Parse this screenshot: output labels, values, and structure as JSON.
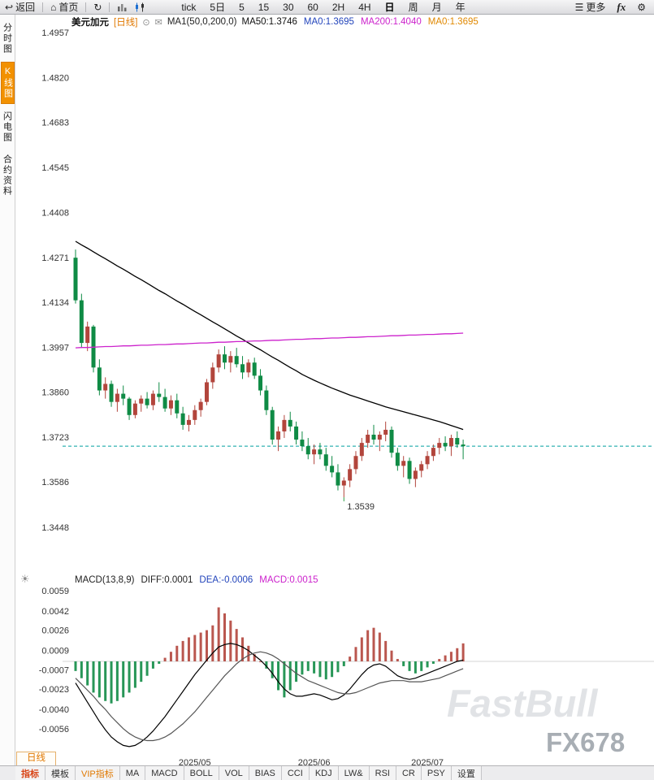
{
  "topbar": {
    "back_label": "返回",
    "home_label": "首页",
    "periods": [
      "tick",
      "5日",
      "5",
      "15",
      "30",
      "60",
      "2H",
      "4H",
      "日",
      "周",
      "月",
      "年"
    ],
    "active_period": "日",
    "more_label": "更多",
    "fx_label": "fx"
  },
  "sidebar": {
    "items": [
      {
        "key": "time-chart",
        "label": "分时图",
        "active": false
      },
      {
        "key": "kline-chart",
        "label": "K线图",
        "active": true
      },
      {
        "key": "lightning-chart",
        "label": "闪电图",
        "active": false
      },
      {
        "key": "contract-info",
        "label": "合约资料",
        "active": false
      }
    ]
  },
  "price_header": {
    "symbol": "美元加元",
    "period_tag": "[日线]",
    "ma_settings": "MA1(50,0,200,0)",
    "ma_values": [
      {
        "label": "MA50:1.3746",
        "color": "#111111"
      },
      {
        "label": "MA0:1.3695",
        "color": "#2244bb"
      },
      {
        "label": "MA200:1.4040",
        "color": "#cc22cc"
      },
      {
        "label": "MA0:1.3695",
        "color": "#e08800"
      }
    ]
  },
  "macd_header": {
    "title": "MACD(13,8,9)",
    "values": [
      {
        "label": "DIFF:0.0001",
        "color": "#222222"
      },
      {
        "label": "DEA:-0.0006",
        "color": "#2244bb"
      },
      {
        "label": "MACD:0.0015",
        "color": "#cc22cc"
      }
    ]
  },
  "bottom_tab": "日线",
  "bottombar": {
    "items": [
      {
        "key": "indicator",
        "label": "指标",
        "style": "hot"
      },
      {
        "key": "template",
        "label": "模板"
      },
      {
        "key": "vip",
        "label": "VIP指标",
        "style": "vip"
      },
      {
        "key": "ma",
        "label": "MA"
      },
      {
        "key": "macd",
        "label": "MACD"
      },
      {
        "key": "boll",
        "label": "BOLL"
      },
      {
        "key": "vol",
        "label": "VOL"
      },
      {
        "key": "bias",
        "label": "BIAS"
      },
      {
        "key": "cci",
        "label": "CCI"
      },
      {
        "key": "kdj",
        "label": "KDJ"
      },
      {
        "key": "lwr",
        "label": "LW&"
      },
      {
        "key": "rsi",
        "label": "RSI"
      },
      {
        "key": "cr",
        "label": "CR"
      },
      {
        "key": "psy",
        "label": "PSY"
      },
      {
        "key": "settings",
        "label": "设置"
      }
    ]
  },
  "watermarks": {
    "brand": "FastBull",
    "site": "FX678"
  },
  "colors": {
    "up": "#b2453c",
    "down": "#0f8b45",
    "ma50": "#000000",
    "ma200": "#cc22cc",
    "diff": "#000000",
    "dea": "#555555",
    "price_line": "#00a0a0",
    "low_label": "#2fa046"
  },
  "chart_data": [
    {
      "type": "candlestick",
      "title": "美元加元 日线",
      "ylim": [
        1.3321,
        1.4967
      ],
      "yticks": [
        1.4957,
        1.482,
        1.4683,
        1.4545,
        1.4408,
        1.4271,
        1.4134,
        1.3997,
        1.386,
        1.3723,
        1.3586,
        1.3448
      ],
      "current_price_line": 1.3695,
      "low_label": {
        "text": "1.3539",
        "index": 45
      },
      "xticks": [
        {
          "index": 20,
          "label": "2025/05"
        },
        {
          "index": 40,
          "label": "2025/06"
        },
        {
          "index": 59,
          "label": "2025/07"
        }
      ],
      "candles": [
        [
          1.427,
          1.4295,
          1.413,
          1.414
        ],
        [
          1.414,
          1.416,
          1.3995,
          1.401
        ],
        [
          1.401,
          1.4075,
          1.3985,
          1.406
        ],
        [
          1.406,
          1.4065,
          1.392,
          1.3935
        ],
        [
          1.3935,
          1.396,
          1.385,
          1.3865
        ],
        [
          1.3865,
          1.3905,
          1.384,
          1.3885
        ],
        [
          1.3885,
          1.3895,
          1.3815,
          1.383
        ],
        [
          1.383,
          1.387,
          1.38,
          1.3855
        ],
        [
          1.3855,
          1.388,
          1.382,
          1.384
        ],
        [
          1.384,
          1.3845,
          1.3775,
          1.379
        ],
        [
          1.379,
          1.3835,
          1.378,
          1.3825
        ],
        [
          1.3825,
          1.385,
          1.38,
          1.384
        ],
        [
          1.384,
          1.386,
          1.381,
          1.382
        ],
        [
          1.382,
          1.3865,
          1.3805,
          1.3855
        ],
        [
          1.3855,
          1.389,
          1.383,
          1.3845
        ],
        [
          1.3845,
          1.387,
          1.38,
          1.381
        ],
        [
          1.381,
          1.385,
          1.379,
          1.3835
        ],
        [
          1.3835,
          1.3855,
          1.378,
          1.3795
        ],
        [
          1.3795,
          1.3815,
          1.3745,
          1.376
        ],
        [
          1.376,
          1.379,
          1.374,
          1.3775
        ],
        [
          1.3775,
          1.382,
          1.376,
          1.3805
        ],
        [
          1.3805,
          1.384,
          1.3785,
          1.383
        ],
        [
          1.383,
          1.39,
          1.382,
          1.389
        ],
        [
          1.389,
          1.395,
          1.387,
          1.3935
        ],
        [
          1.3935,
          1.399,
          1.392,
          1.3975
        ],
        [
          1.3975,
          1.4,
          1.393,
          1.395
        ],
        [
          1.395,
          1.3985,
          1.392,
          1.397
        ],
        [
          1.397,
          1.3995,
          1.3935,
          1.3945
        ],
        [
          1.3945,
          1.397,
          1.39,
          1.392
        ],
        [
          1.392,
          1.396,
          1.3905,
          1.395
        ],
        [
          1.395,
          1.3965,
          1.39,
          1.391
        ],
        [
          1.391,
          1.393,
          1.385,
          1.3865
        ],
        [
          1.3865,
          1.388,
          1.379,
          1.3805
        ],
        [
          1.3805,
          1.3815,
          1.37,
          1.3715
        ],
        [
          1.3715,
          1.3755,
          1.368,
          1.374
        ],
        [
          1.374,
          1.379,
          1.372,
          1.3775
        ],
        [
          1.3775,
          1.38,
          1.374,
          1.3755
        ],
        [
          1.3755,
          1.377,
          1.37,
          1.3715
        ],
        [
          1.3715,
          1.374,
          1.368,
          1.3695
        ],
        [
          1.3695,
          1.372,
          1.3655,
          1.367
        ],
        [
          1.367,
          1.37,
          1.364,
          1.3685
        ],
        [
          1.3685,
          1.3705,
          1.3655,
          1.367
        ],
        [
          1.367,
          1.369,
          1.362,
          1.3635
        ],
        [
          1.3635,
          1.3665,
          1.36,
          1.3615
        ],
        [
          1.3615,
          1.364,
          1.356,
          1.3575
        ],
        [
          1.3575,
          1.36,
          1.3539,
          1.359
        ],
        [
          1.359,
          1.364,
          1.357,
          1.3625
        ],
        [
          1.3625,
          1.368,
          1.361,
          1.3665
        ],
        [
          1.3665,
          1.372,
          1.365,
          1.3705
        ],
        [
          1.3705,
          1.3745,
          1.369,
          1.373
        ],
        [
          1.373,
          1.376,
          1.37,
          1.3715
        ],
        [
          1.3715,
          1.374,
          1.368,
          1.373
        ],
        [
          1.373,
          1.377,
          1.371,
          1.3745
        ],
        [
          1.3745,
          1.3755,
          1.366,
          1.3675
        ],
        [
          1.3675,
          1.369,
          1.362,
          1.3635
        ],
        [
          1.3635,
          1.3665,
          1.36,
          1.365
        ],
        [
          1.365,
          1.366,
          1.358,
          1.3595
        ],
        [
          1.3595,
          1.363,
          1.357,
          1.362
        ],
        [
          1.362,
          1.365,
          1.36,
          1.364
        ],
        [
          1.364,
          1.368,
          1.3625,
          1.3665
        ],
        [
          1.3665,
          1.37,
          1.365,
          1.369
        ],
        [
          1.369,
          1.372,
          1.367,
          1.3705
        ],
        [
          1.3705,
          1.3725,
          1.368,
          1.3695
        ],
        [
          1.3695,
          1.373,
          1.3665,
          1.372
        ],
        [
          1.372,
          1.374,
          1.369,
          1.37
        ],
        [
          1.37,
          1.3715,
          1.3655,
          1.3695
        ]
      ],
      "ma50": [
        1.432,
        1.4309,
        1.4299,
        1.4288,
        1.4277,
        1.4267,
        1.4256,
        1.4245,
        1.4235,
        1.4224,
        1.4213,
        1.4203,
        1.4192,
        1.4181,
        1.417,
        1.416,
        1.4149,
        1.4138,
        1.4128,
        1.4117,
        1.4106,
        1.4096,
        1.4085,
        1.4074,
        1.4064,
        1.4053,
        1.4042,
        1.4031,
        1.4021,
        1.401,
        1.3999,
        1.3989,
        1.3978,
        1.3967,
        1.3957,
        1.3946,
        1.3935,
        1.3925,
        1.3914,
        1.3905,
        1.3896,
        1.3888,
        1.388,
        1.3872,
        1.3865,
        1.3858,
        1.3851,
        1.3845,
        1.3839,
        1.3833,
        1.3827,
        1.3821,
        1.3815,
        1.381,
        1.3805,
        1.38,
        1.3795,
        1.379,
        1.3785,
        1.378,
        1.3775,
        1.377,
        1.3764,
        1.3758,
        1.3752,
        1.3746
      ],
      "ma200": [
        1.3995,
        1.3996,
        1.3996,
        1.3997,
        1.3998,
        1.3999,
        1.3999,
        1.4,
        1.4001,
        1.4001,
        1.4002,
        1.4003,
        1.4003,
        1.4004,
        1.4005,
        1.4005,
        1.4006,
        1.4007,
        1.4007,
        1.4008,
        1.4009,
        1.401,
        1.401,
        1.4011,
        1.4012,
        1.4012,
        1.4013,
        1.4014,
        1.4014,
        1.4015,
        1.4016,
        1.4016,
        1.4017,
        1.4018,
        1.4018,
        1.4019,
        1.402,
        1.4021,
        1.4021,
        1.4022,
        1.4023,
        1.4023,
        1.4024,
        1.4025,
        1.4025,
        1.4026,
        1.4027,
        1.4027,
        1.4028,
        1.4029,
        1.4029,
        1.403,
        1.4031,
        1.4032,
        1.4032,
        1.4033,
        1.4034,
        1.4034,
        1.4035,
        1.4036,
        1.4036,
        1.4037,
        1.4038,
        1.4038,
        1.4039,
        1.404
      ]
    },
    {
      "type": "bar",
      "title": "MACD",
      "ylim": [
        -0.009,
        0.00616
      ],
      "yticks": [
        0.0059,
        0.0042,
        0.0026,
        0.0009,
        -0.0007,
        -0.0023,
        -0.004,
        -0.0056
      ],
      "hist": [
        -0.0008,
        -0.0014,
        -0.002,
        -0.0026,
        -0.003,
        -0.0033,
        -0.0035,
        -0.0033,
        -0.003,
        -0.0026,
        -0.0022,
        -0.0017,
        -0.0012,
        -0.0006,
        -0.0002,
        0.0003,
        0.0008,
        0.0013,
        0.0017,
        0.002,
        0.0022,
        0.0024,
        0.0026,
        0.003,
        0.0045,
        0.004,
        0.0034,
        0.0027,
        0.002,
        0.0013,
        0.0006,
        0.0,
        -0.0006,
        -0.0014,
        -0.0024,
        -0.003,
        -0.0024,
        -0.0017,
        -0.0011,
        -0.0008,
        -0.001,
        -0.0013,
        -0.0015,
        -0.0013,
        -0.0009,
        -0.0004,
        0.0004,
        0.0012,
        0.002,
        0.0026,
        0.0028,
        0.0024,
        0.0017,
        0.0009,
        0.0002,
        -0.0004,
        -0.0008,
        -0.001,
        -0.0008,
        -0.0005,
        -0.0002,
        0.0002,
        0.0005,
        0.0008,
        0.0011,
        0.0015
      ],
      "diff": [
        -0.0018,
        -0.0026,
        -0.0034,
        -0.0042,
        -0.005,
        -0.0057,
        -0.0063,
        -0.0067,
        -0.007,
        -0.0071,
        -0.007,
        -0.0067,
        -0.0063,
        -0.0058,
        -0.0052,
        -0.0046,
        -0.0039,
        -0.0032,
        -0.0025,
        -0.0018,
        -0.0011,
        -0.0005,
        0.0001,
        0.0007,
        0.0012,
        0.0014,
        0.0015,
        0.0014,
        0.0012,
        0.0009,
        0.0005,
        0.0001,
        -0.0004,
        -0.001,
        -0.0017,
        -0.0023,
        -0.0027,
        -0.0029,
        -0.0029,
        -0.0028,
        -0.0027,
        -0.0028,
        -0.003,
        -0.0032,
        -0.0031,
        -0.0028,
        -0.0023,
        -0.0017,
        -0.0011,
        -0.0006,
        -0.0003,
        -0.0002,
        -0.0004,
        -0.0008,
        -0.0012,
        -0.0014,
        -0.0015,
        -0.0014,
        -0.0012,
        -0.001,
        -0.0008,
        -0.0006,
        -0.0004,
        -0.0002,
        0.0,
        0.0001
      ],
      "dea": [
        -0.0014,
        -0.0019,
        -0.0024,
        -0.0029,
        -0.0035,
        -0.004,
        -0.0046,
        -0.0051,
        -0.0056,
        -0.006,
        -0.0063,
        -0.0065,
        -0.0066,
        -0.0066,
        -0.0065,
        -0.0063,
        -0.006,
        -0.0056,
        -0.0052,
        -0.0047,
        -0.0042,
        -0.0036,
        -0.003,
        -0.0024,
        -0.0018,
        -0.0012,
        -0.0007,
        -0.0002,
        0.0002,
        0.0005,
        0.0007,
        0.0008,
        0.0007,
        0.0005,
        0.0002,
        -0.0002,
        -0.0006,
        -0.001,
        -0.0013,
        -0.0016,
        -0.0018,
        -0.002,
        -0.0022,
        -0.0024,
        -0.0026,
        -0.0027,
        -0.0027,
        -0.0026,
        -0.0024,
        -0.0022,
        -0.002,
        -0.0018,
        -0.0017,
        -0.0016,
        -0.0016,
        -0.0016,
        -0.0017,
        -0.0017,
        -0.0017,
        -0.0016,
        -0.0015,
        -0.0014,
        -0.0012,
        -0.001,
        -0.0008,
        -0.0006
      ]
    }
  ]
}
